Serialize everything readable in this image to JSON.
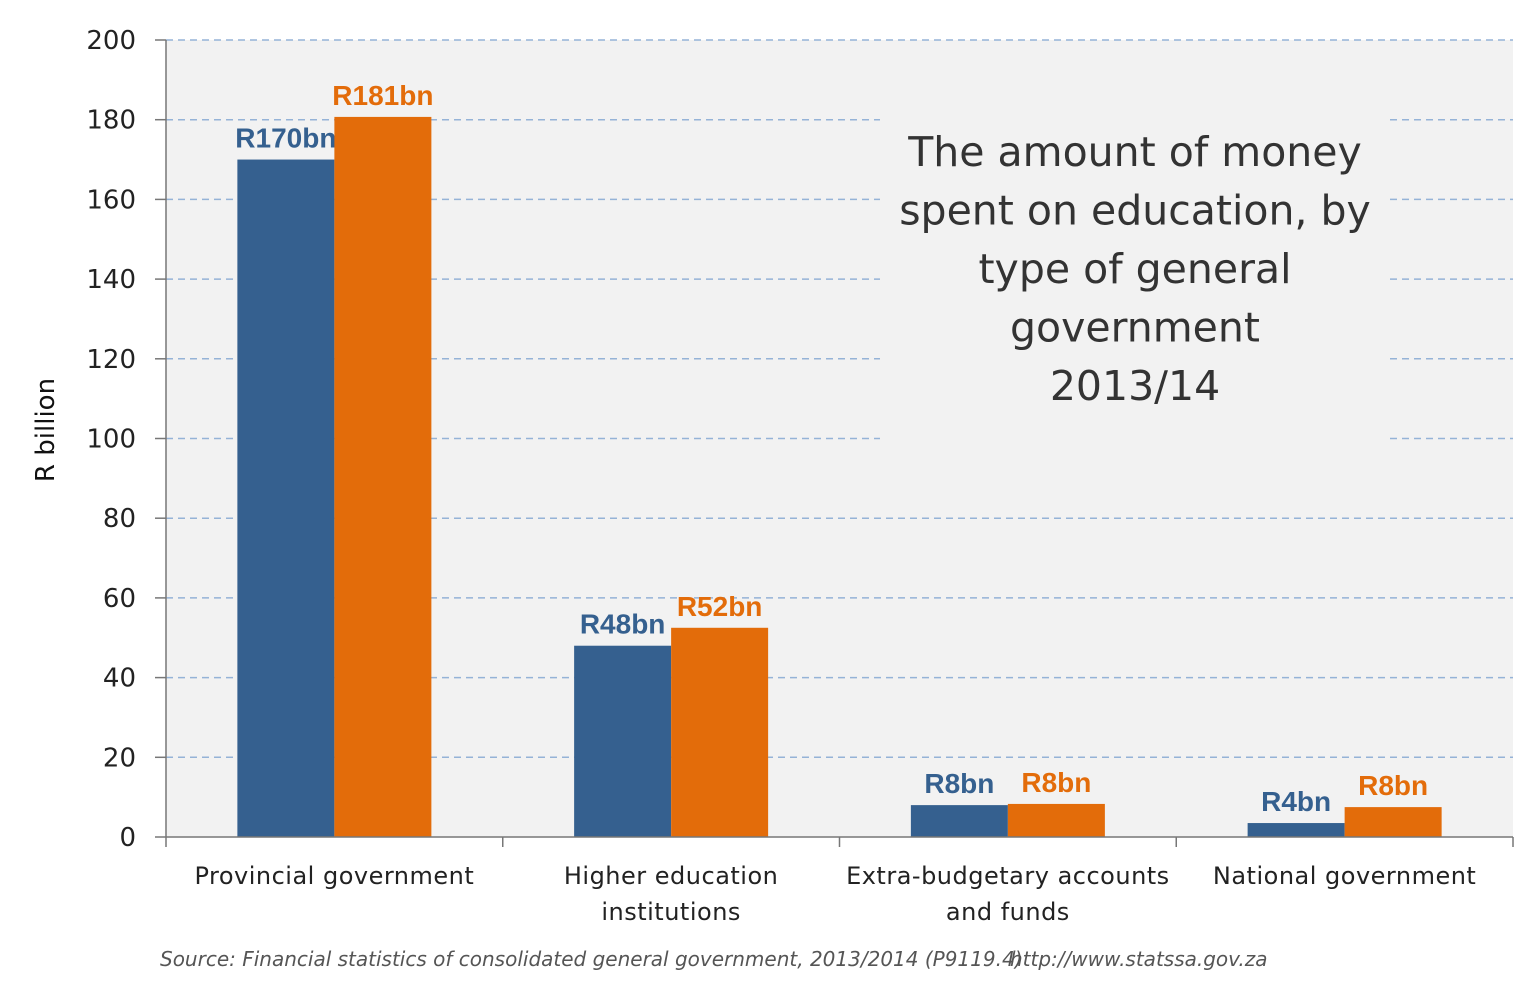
{
  "chart_data": {
    "type": "bar",
    "title": [
      "The amount of money",
      "spent on education, by",
      "type of general",
      "government",
      "2013/14"
    ],
    "ylabel": "R billion",
    "xlabel": "",
    "ylim": [
      0,
      200
    ],
    "yticks": [
      0,
      20,
      40,
      60,
      80,
      100,
      120,
      140,
      160,
      180,
      200
    ],
    "grid": true,
    "categories": [
      [
        "Provincial government"
      ],
      [
        "Higher education",
        "institutions"
      ],
      [
        "Extra-budgetary accounts",
        "and funds"
      ],
      [
        "National government"
      ]
    ],
    "series": [
      {
        "color": "#35608f",
        "values": [
          170,
          48,
          8,
          3.5
        ],
        "labels": [
          "R170bn",
          "R48bn",
          "R8bn",
          "R4bn"
        ]
      },
      {
        "color": "#e36c0a",
        "values": [
          180.7,
          52.5,
          8.3,
          7.5
        ],
        "labels": [
          "R181bn",
          "R52bn",
          "R8bn",
          "R8bn"
        ]
      }
    ]
  },
  "source": "Source: Financial statistics of consolidated general government, 2013/2014 (P9119.4)",
  "url": "http://www.statssa.gov.za"
}
